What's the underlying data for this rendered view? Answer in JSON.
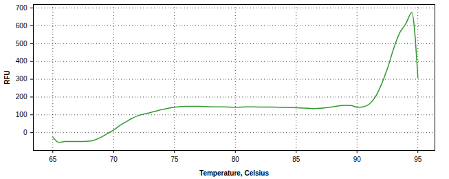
{
  "chart_data": {
    "type": "line",
    "x_label": "Temperature, Celsius",
    "y_label": "RFU",
    "x": [
      65,
      65.5,
      66,
      67,
      68,
      68.5,
      69,
      69.5,
      70,
      70.5,
      71,
      71.5,
      72,
      73,
      74,
      75,
      76,
      77,
      78,
      79,
      80,
      81,
      82,
      83,
      84,
      85,
      86,
      86.5,
      87,
      88,
      89,
      89.5,
      90,
      90.5,
      91,
      91.5,
      92,
      92.5,
      93,
      93.5,
      94,
      94.5,
      95
    ],
    "series": [
      {
        "name": "RFU",
        "color": "#339933",
        "values": [
          -25,
          -55,
          -50,
          -50,
          -48,
          -40,
          -25,
          -5,
          15,
          40,
          60,
          80,
          95,
          112,
          130,
          143,
          148,
          148,
          145,
          145,
          143,
          145,
          144,
          144,
          142,
          140,
          137,
          135,
          137,
          145,
          153,
          152,
          143,
          145,
          160,
          200,
          270,
          360,
          470,
          560,
          610,
          675,
          310
        ]
      }
    ],
    "xlim": [
      63.4,
      96.4
    ],
    "ylim": [
      -100,
      720
    ],
    "xticks": [
      65,
      70,
      75,
      80,
      85,
      90,
      95
    ],
    "yticks": [
      0,
      100,
      200,
      300,
      400,
      500,
      600,
      700
    ],
    "grid": true
  }
}
